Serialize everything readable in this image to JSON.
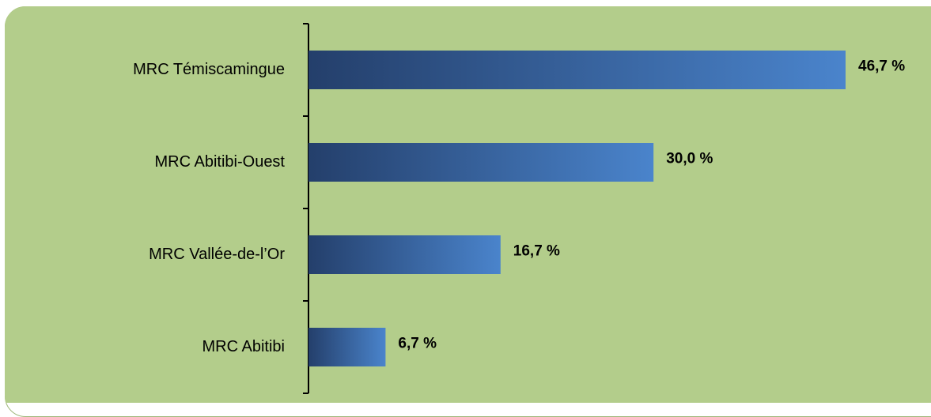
{
  "colors": {
    "background": "#b3cd8b",
    "bar_dark": "#243f6b",
    "bar_light": "#4a84cc",
    "axis": "#000000"
  },
  "chart_data": {
    "type": "bar",
    "orientation": "horizontal",
    "categories": [
      "MRC Témiscamingue",
      "MRC Abitibi-Ouest",
      "MRC Vallée-de-l’Or",
      "MRC Abitibi"
    ],
    "values": [
      46.7,
      30.0,
      16.7,
      6.7
    ],
    "value_labels": [
      "46,7 %",
      "30,0 %",
      "16,7 %",
      "6,7 %"
    ],
    "xlim": [
      0,
      46.7
    ],
    "title": "",
    "xlabel": "",
    "ylabel": "",
    "grid": false,
    "legend": "none"
  }
}
